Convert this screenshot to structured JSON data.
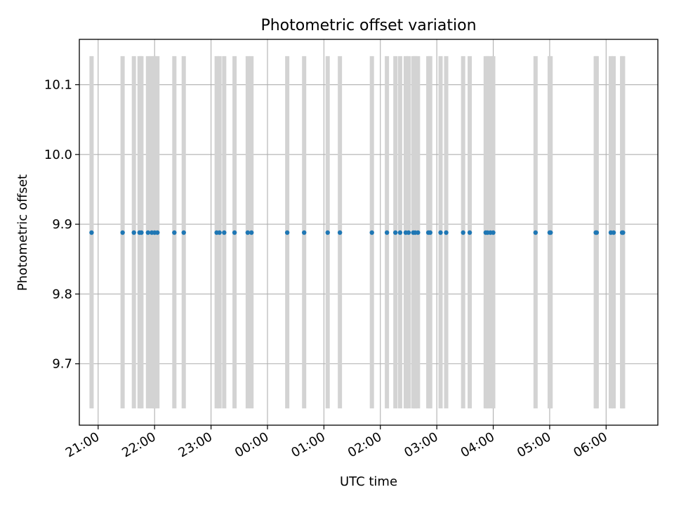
{
  "chart_data": {
    "type": "scatter",
    "title": "Photometric offset variation",
    "xlabel": "UTC time",
    "ylabel": "Photometric offset",
    "grid": true,
    "xlim": [
      "20:40",
      "06:55"
    ],
    "ylim": [
      9.612,
      10.165
    ],
    "xticks": [
      "21:00",
      "22:00",
      "23:00",
      "00:00",
      "01:00",
      "02:00",
      "03:00",
      "04:00",
      "05:00",
      "06:00"
    ],
    "yticks": [
      "9.7",
      "9.8",
      "9.9",
      "10.0",
      "10.1"
    ],
    "error_band": {
      "lower": 9.636,
      "upper": 10.141
    },
    "colors": {
      "points": "#1f77b4",
      "bars": "#d3d3d3",
      "grid": "#b0b0b0"
    },
    "x": [
      "20:53",
      "21:26",
      "21:38",
      "21:44",
      "21:46",
      "21:53",
      "21:57",
      "22:00",
      "22:03",
      "22:21",
      "22:31",
      "23:06",
      "23:09",
      "23:14",
      "23:25",
      "23:39",
      "23:43",
      "00:21",
      "00:39",
      "01:04",
      "01:17",
      "01:51",
      "02:07",
      "02:16",
      "02:21",
      "02:27",
      "02:30",
      "02:35",
      "02:37",
      "02:40",
      "02:51",
      "02:53",
      "03:04",
      "03:10",
      "03:28",
      "03:35",
      "03:52",
      "03:54",
      "03:57",
      "04:00",
      "04:45",
      "05:00",
      "05:01",
      "05:49",
      "05:50",
      "06:05",
      "06:08",
      "06:17",
      "06:18"
    ],
    "y": [
      9.888,
      9.888,
      9.888,
      9.888,
      9.888,
      9.888,
      9.888,
      9.888,
      9.888,
      9.888,
      9.888,
      9.888,
      9.888,
      9.888,
      9.888,
      9.888,
      9.888,
      9.888,
      9.888,
      9.888,
      9.888,
      9.888,
      9.888,
      9.888,
      9.888,
      9.888,
      9.888,
      9.888,
      9.888,
      9.888,
      9.888,
      9.888,
      9.888,
      9.888,
      9.888,
      9.888,
      9.888,
      9.888,
      9.888,
      9.888,
      9.888,
      9.888,
      9.888,
      9.888,
      9.888,
      9.888,
      9.888,
      9.888,
      9.888
    ]
  }
}
